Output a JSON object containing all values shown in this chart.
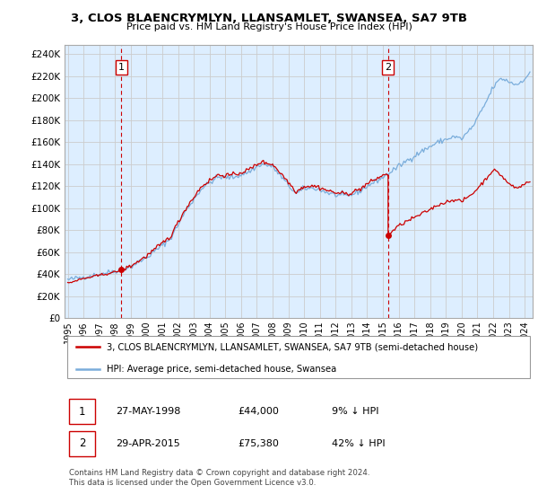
{
  "title1": "3, CLOS BLAENCRYMLYN, LLANSAMLET, SWANSEA, SA7 9TB",
  "title2": "Price paid vs. HM Land Registry's House Price Index (HPI)",
  "ytick_labels": [
    "£0",
    "£20K",
    "£40K",
    "£60K",
    "£80K",
    "£100K",
    "£120K",
    "£140K",
    "£160K",
    "£180K",
    "£200K",
    "£220K",
    "£240K"
  ],
  "yticks": [
    0,
    20000,
    40000,
    60000,
    80000,
    100000,
    120000,
    140000,
    160000,
    180000,
    200000,
    220000,
    240000
  ],
  "xlim_start": 1994.8,
  "xlim_end": 2024.5,
  "ylim": [
    0,
    248000
  ],
  "purchase1_x": 1998.4,
  "purchase1_y": 44000,
  "purchase2_x": 2015.33,
  "purchase2_y": 75380,
  "vline_color": "#cc0000",
  "hpi_color": "#7aaddb",
  "price_color": "#cc0000",
  "bg_fill_color": "#ddeeff",
  "legend_label1": "3, CLOS BLAENCRYMLYN, LLANSAMLET, SWANSEA, SA7 9TB (semi-detached house)",
  "legend_label2": "HPI: Average price, semi-detached house, Swansea",
  "note1_label": "1",
  "note1_date": "27-MAY-1998",
  "note1_price": "£44,000",
  "note1_hpi": "9% ↓ HPI",
  "note2_label": "2",
  "note2_date": "29-APR-2015",
  "note2_price": "£75,380",
  "note2_hpi": "42% ↓ HPI",
  "footnote": "Contains HM Land Registry data © Crown copyright and database right 2024.\nThis data is licensed under the Open Government Licence v3.0.",
  "bg_color": "#ffffff",
  "grid_color": "#cccccc"
}
